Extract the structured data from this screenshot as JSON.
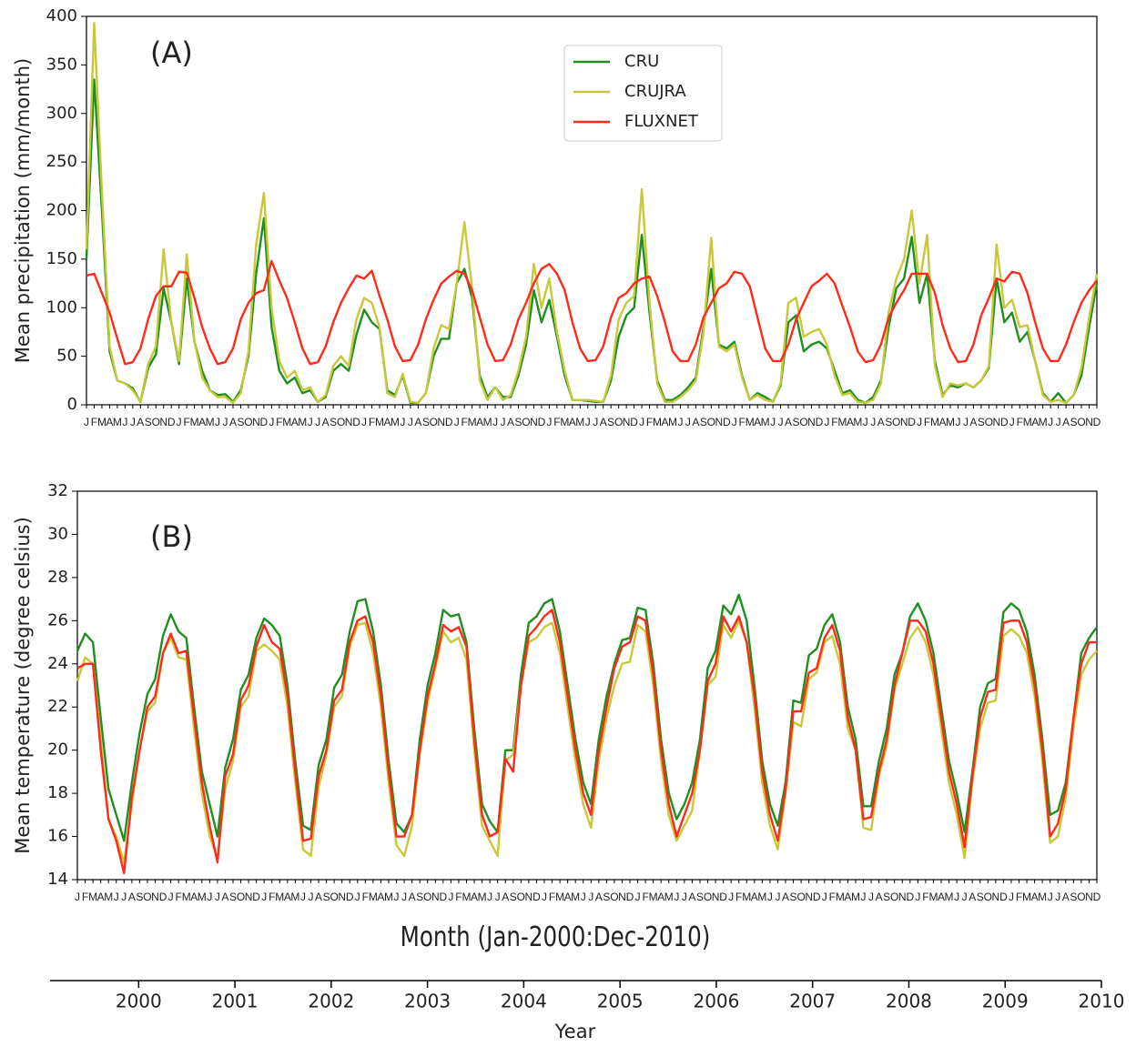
{
  "chart_data": [
    {
      "type": "line",
      "annotation": "(A)",
      "ylabel": "Mean precipitation (mm/month)",
      "legend": "upper center",
      "categories": [
        "J",
        "F",
        "M",
        "A",
        "M",
        "J",
        "J",
        "A",
        "S",
        "O",
        "N",
        "D",
        "J",
        "F",
        "M",
        "A",
        "M",
        "J",
        "J",
        "A",
        "S",
        "O",
        "N",
        "D",
        "J",
        "F",
        "M",
        "A",
        "M",
        "J",
        "J",
        "A",
        "S",
        "O",
        "N",
        "D",
        "J",
        "F",
        "M",
        "A",
        "M",
        "J",
        "J",
        "A",
        "S",
        "O",
        "N",
        "D",
        "J",
        "F",
        "M",
        "A",
        "M",
        "J",
        "J",
        "A",
        "S",
        "O",
        "N",
        "D",
        "J",
        "F",
        "M",
        "A",
        "M",
        "J",
        "J",
        "A",
        "S",
        "O",
        "N",
        "D",
        "J",
        "F",
        "M",
        "A",
        "M",
        "J",
        "J",
        "A",
        "S",
        "O",
        "N",
        "D",
        "J",
        "F",
        "M",
        "A",
        "M",
        "J",
        "J",
        "A",
        "S",
        "O",
        "N",
        "D",
        "J",
        "F",
        "M",
        "A",
        "M",
        "J",
        "J",
        "A",
        "S",
        "O",
        "N",
        "D",
        "J",
        "F",
        "M",
        "A",
        "M",
        "J",
        "J",
        "A",
        "S",
        "O",
        "N",
        "D",
        "J",
        "F",
        "M",
        "A",
        "M",
        "J",
        "J",
        "A",
        "S",
        "O",
        "N",
        "D"
      ],
      "ylim": [
        0,
        400
      ],
      "yticks": [
        0,
        50,
        100,
        150,
        200,
        250,
        300,
        350,
        400
      ],
      "series": [
        {
          "name": "CRU",
          "color": "#1f8f1f",
          "values": [
            150,
            335,
            200,
            55,
            25,
            22,
            17,
            3,
            38,
            52,
            120,
            85,
            42,
            130,
            65,
            35,
            15,
            10,
            11,
            3,
            15,
            50,
            135,
            192,
            80,
            35,
            22,
            28,
            12,
            15,
            3,
            8,
            35,
            42,
            35,
            72,
            98,
            85,
            78,
            15,
            10,
            30,
            2,
            2,
            12,
            50,
            68,
            68,
            125,
            140,
            110,
            30,
            8,
            18,
            8,
            8,
            30,
            62,
            118,
            85,
            108,
            70,
            30,
            5,
            5,
            4,
            3,
            3,
            25,
            70,
            92,
            100,
            175,
            95,
            25,
            5,
            5,
            10,
            18,
            28,
            80,
            140,
            62,
            58,
            65,
            30,
            5,
            12,
            8,
            3,
            20,
            85,
            92,
            55,
            62,
            65,
            58,
            35,
            12,
            15,
            5,
            2,
            8,
            25,
            80,
            120,
            130,
            173,
            105,
            135,
            45,
            10,
            20,
            18,
            22,
            18,
            25,
            38,
            130,
            85,
            95,
            65,
            75,
            45,
            12,
            3,
            12,
            2,
            10,
            30,
            80,
            125
          ]
        },
        {
          "name": "CRUJRA",
          "color": "#c8c83a",
          "values": [
            160,
            393,
            220,
            60,
            25,
            22,
            15,
            3,
            42,
            60,
            160,
            85,
            45,
            155,
            65,
            28,
            15,
            8,
            8,
            2,
            12,
            55,
            165,
            218,
            100,
            45,
            28,
            35,
            15,
            18,
            3,
            10,
            40,
            50,
            40,
            88,
            110,
            105,
            80,
            12,
            8,
            32,
            3,
            2,
            12,
            58,
            82,
            78,
            125,
            188,
            120,
            25,
            5,
            18,
            5,
            10,
            35,
            70,
            145,
            100,
            130,
            75,
            35,
            5,
            5,
            5,
            4,
            3,
            30,
            88,
            105,
            112,
            222,
            105,
            22,
            3,
            3,
            8,
            15,
            25,
            75,
            172,
            60,
            55,
            62,
            28,
            5,
            10,
            5,
            3,
            22,
            105,
            110,
            70,
            75,
            78,
            62,
            30,
            10,
            12,
            3,
            2,
            5,
            22,
            95,
            130,
            150,
            200,
            125,
            175,
            40,
            8,
            22,
            20,
            22,
            18,
            25,
            40,
            165,
            100,
            108,
            80,
            82,
            45,
            10,
            3,
            5,
            2,
            10,
            38,
            90,
            135
          ]
        },
        {
          "name": "FLUXNET",
          "color": "#ff2a1a",
          "values": [
            133,
            135,
            115,
            95,
            68,
            42,
            44,
            58,
            88,
            112,
            122,
            122,
            137,
            136,
            110,
            80,
            58,
            42,
            44,
            58,
            88,
            105,
            115,
            118,
            148,
            128,
            110,
            85,
            58,
            42,
            44,
            60,
            85,
            105,
            120,
            133,
            130,
            138,
            112,
            88,
            60,
            45,
            46,
            62,
            88,
            108,
            125,
            132,
            138,
            135,
            118,
            90,
            62,
            45,
            46,
            62,
            88,
            105,
            125,
            140,
            145,
            135,
            118,
            85,
            58,
            45,
            46,
            60,
            90,
            110,
            115,
            125,
            130,
            132,
            112,
            85,
            55,
            45,
            45,
            62,
            90,
            105,
            120,
            125,
            137,
            135,
            122,
            90,
            58,
            45,
            45,
            62,
            88,
            105,
            122,
            128,
            135,
            125,
            102,
            80,
            55,
            44,
            46,
            62,
            90,
            105,
            118,
            135,
            135,
            135,
            115,
            82,
            58,
            44,
            45,
            62,
            92,
            110,
            130,
            127,
            137,
            135,
            115,
            85,
            58,
            45,
            45,
            62,
            85,
            105,
            118,
            128
          ]
        }
      ]
    },
    {
      "type": "line",
      "annotation": "(B)",
      "ylabel": "Mean temperature (degree celsius)",
      "xlabel": "Month (Jan-2000:Dec-2010)",
      "categories": [
        "J",
        "F",
        "M",
        "A",
        "M",
        "J",
        "J",
        "A",
        "S",
        "O",
        "N",
        "D",
        "J",
        "F",
        "M",
        "A",
        "M",
        "J",
        "J",
        "A",
        "S",
        "O",
        "N",
        "D",
        "J",
        "F",
        "M",
        "A",
        "M",
        "J",
        "J",
        "A",
        "S",
        "O",
        "N",
        "D",
        "J",
        "F",
        "M",
        "A",
        "M",
        "J",
        "J",
        "A",
        "S",
        "O",
        "N",
        "D",
        "J",
        "F",
        "M",
        "A",
        "M",
        "J",
        "J",
        "A",
        "S",
        "O",
        "N",
        "D",
        "J",
        "F",
        "M",
        "A",
        "M",
        "J",
        "J",
        "A",
        "S",
        "O",
        "N",
        "D",
        "J",
        "F",
        "M",
        "A",
        "M",
        "J",
        "J",
        "A",
        "S",
        "O",
        "N",
        "D",
        "J",
        "F",
        "M",
        "A",
        "M",
        "J",
        "J",
        "A",
        "S",
        "O",
        "N",
        "D",
        "J",
        "F",
        "M",
        "A",
        "M",
        "J",
        "J",
        "A",
        "S",
        "O",
        "N",
        "D",
        "J",
        "F",
        "M",
        "A",
        "M",
        "J",
        "J",
        "A",
        "S",
        "O",
        "N",
        "D",
        "J",
        "F",
        "M",
        "A",
        "M",
        "J",
        "J",
        "A",
        "S",
        "O",
        "N",
        "D"
      ],
      "ylim": [
        14,
        32
      ],
      "yticks": [
        14,
        16,
        18,
        20,
        22,
        24,
        26,
        28,
        30,
        32
      ],
      "series": [
        {
          "name": "CRU",
          "color": "#1f8f1f",
          "values": [
            24.6,
            25.4,
            25.0,
            21.5,
            18.2,
            17.0,
            15.8,
            18.5,
            20.8,
            22.6,
            23.3,
            25.3,
            26.3,
            25.5,
            25.2,
            22.0,
            19.0,
            17.5,
            16.0,
            19.2,
            20.5,
            22.8,
            23.5,
            25.2,
            26.1,
            25.8,
            25.3,
            23.0,
            19.5,
            16.5,
            16.3,
            19.3,
            20.5,
            22.9,
            23.5,
            25.5,
            26.9,
            27.0,
            25.5,
            23.0,
            19.5,
            16.6,
            16.2,
            17.0,
            20.5,
            23.0,
            24.5,
            26.5,
            26.2,
            26.3,
            25.0,
            21.0,
            17.5,
            16.7,
            16.2,
            20.0,
            20.0,
            23.5,
            25.9,
            26.2,
            26.8,
            27.0,
            25.5,
            23.0,
            20.5,
            18.5,
            17.5,
            20.5,
            22.5,
            24.0,
            25.1,
            25.2,
            26.6,
            26.5,
            24.0,
            20.5,
            18.0,
            16.8,
            17.5,
            18.5,
            20.5,
            23.8,
            24.6,
            26.7,
            26.3,
            27.2,
            26.0,
            23.0,
            19.5,
            17.5,
            16.5,
            18.5,
            22.3,
            22.2,
            24.4,
            24.7,
            25.8,
            26.3,
            25.0,
            22.0,
            20.5,
            17.4,
            17.4,
            19.5,
            21.0,
            23.5,
            24.5,
            26.2,
            26.8,
            26.0,
            24.5,
            22.0,
            19.5,
            18.0,
            16.2,
            19.0,
            22.0,
            23.1,
            23.3,
            26.4,
            26.8,
            26.5,
            25.5,
            23.5,
            20.5,
            17.0,
            17.2,
            18.5,
            21.5,
            24.5,
            25.2,
            25.7
          ]
        },
        {
          "name": "CRUJRA",
          "color": "#c8c83a",
          "values": [
            23.2,
            24.3,
            24.0,
            20.5,
            16.8,
            16.0,
            14.8,
            17.5,
            20.0,
            21.8,
            22.2,
            24.5,
            25.2,
            24.3,
            24.2,
            21.0,
            18.0,
            16.0,
            15.0,
            18.2,
            19.5,
            22.0,
            22.5,
            24.6,
            24.9,
            24.6,
            24.2,
            22.0,
            18.5,
            15.4,
            15.1,
            18.3,
            19.8,
            22.0,
            22.5,
            24.8,
            25.8,
            25.9,
            24.5,
            22.0,
            18.5,
            15.6,
            15.1,
            16.5,
            19.8,
            22.2,
            23.8,
            25.5,
            25.0,
            25.2,
            24.2,
            20.0,
            16.5,
            15.8,
            15.1,
            19.5,
            19.8,
            23.0,
            25.0,
            25.2,
            25.7,
            25.9,
            24.5,
            22.0,
            19.5,
            17.5,
            16.4,
            19.5,
            21.5,
            23.0,
            24.0,
            24.1,
            25.8,
            25.5,
            23.0,
            19.5,
            17.0,
            15.8,
            16.5,
            17.2,
            20.0,
            23.0,
            23.4,
            25.8,
            25.2,
            26.0,
            25.0,
            22.0,
            18.5,
            16.5,
            15.4,
            18.0,
            21.3,
            21.1,
            23.3,
            23.6,
            25.0,
            25.3,
            24.0,
            21.0,
            20.0,
            16.4,
            16.3,
            18.8,
            20.2,
            22.8,
            24.0,
            25.2,
            25.7,
            25.0,
            23.5,
            21.0,
            18.5,
            17.0,
            15.0,
            18.5,
            21.0,
            22.2,
            22.3,
            25.3,
            25.6,
            25.3,
            24.5,
            22.5,
            19.5,
            15.7,
            16.0,
            17.8,
            21.0,
            23.5,
            24.2,
            24.6
          ]
        },
        {
          "name": "FLUXNET",
          "color": "#ff2a1a",
          "values": [
            23.8,
            24.0,
            24.0,
            20.0,
            16.8,
            15.8,
            14.3,
            17.8,
            20.0,
            22.0,
            22.5,
            24.5,
            25.4,
            24.5,
            24.6,
            21.5,
            18.5,
            16.5,
            14.8,
            18.8,
            19.8,
            22.3,
            23.0,
            24.8,
            25.8,
            25.0,
            24.7,
            22.5,
            19.0,
            15.8,
            15.9,
            18.8,
            20.0,
            22.3,
            22.8,
            25.0,
            26.0,
            26.2,
            25.0,
            22.5,
            19.0,
            16.0,
            16.0,
            17.0,
            20.0,
            22.5,
            24.0,
            25.8,
            25.5,
            25.7,
            24.8,
            20.5,
            17.0,
            16.0,
            16.2,
            19.6,
            19.0,
            23.0,
            25.3,
            25.7,
            26.2,
            26.5,
            25.0,
            22.5,
            20.0,
            18.0,
            17.0,
            20.0,
            22.0,
            23.8,
            24.8,
            25.0,
            26.2,
            26.0,
            23.5,
            20.0,
            17.5,
            16.0,
            17.0,
            18.0,
            20.0,
            23.2,
            24.0,
            26.2,
            25.5,
            26.2,
            25.0,
            22.5,
            19.0,
            17.0,
            15.8,
            18.2,
            21.8,
            21.8,
            23.6,
            23.8,
            25.2,
            25.8,
            24.6,
            21.5,
            20.0,
            16.8,
            16.9,
            19.0,
            20.5,
            23.0,
            24.5,
            26.0,
            26.0,
            25.5,
            24.0,
            21.5,
            19.0,
            17.5,
            15.5,
            18.8,
            21.5,
            22.7,
            22.8,
            25.9,
            26.0,
            26.0,
            25.0,
            23.0,
            20.0,
            16.0,
            16.6,
            18.2,
            21.5,
            24.0,
            25.0,
            25.0
          ]
        }
      ]
    },
    {
      "type": "axis",
      "xlabel": "Year",
      "xlim": [
        1999.08,
        2010
      ],
      "xticks": [
        2000,
        2001,
        2002,
        2003,
        2004,
        2005,
        2006,
        2007,
        2008,
        2009,
        2010
      ]
    }
  ]
}
